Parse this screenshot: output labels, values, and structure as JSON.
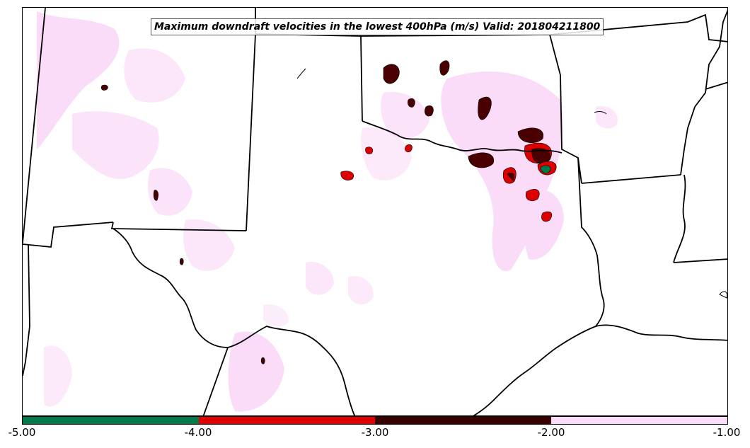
{
  "title": "Maximum downdraft velocities in the lowest 400hPa (m/s) Valid: 201804211800",
  "colorbar": {
    "ticks": [
      "-5.00",
      "-4.00",
      "-3.00",
      "-2.00",
      "-1.00"
    ],
    "segments": [
      {
        "range": [
          -5.0,
          -4.0
        ],
        "color": "#007a4d"
      },
      {
        "range": [
          -4.0,
          -3.0
        ],
        "color": "#e00000"
      },
      {
        "range": [
          -3.0,
          -2.0
        ],
        "color": "#3a0000"
      },
      {
        "range": [
          -2.0,
          -1.0
        ],
        "color": "#fadcf8"
      }
    ]
  },
  "colors": {
    "boundary": "#000000",
    "light_pink": "#fadcf8",
    "dark_red": "#4a0000",
    "red": "#dd0000",
    "green": "#007a4d"
  }
}
